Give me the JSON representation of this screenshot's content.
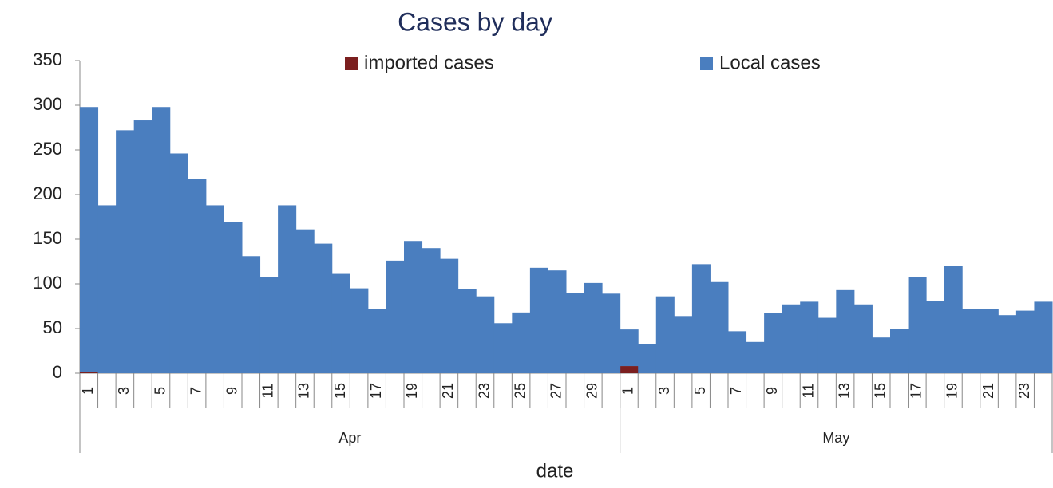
{
  "chart_data": {
    "type": "bar",
    "stacked": true,
    "title": "Cases by day",
    "x_label": "date",
    "categories": [
      "1",
      null,
      "3",
      null,
      "5",
      null,
      "7",
      null,
      "9",
      null,
      "11",
      null,
      "13",
      null,
      "15",
      null,
      "17",
      null,
      "19",
      null,
      "21",
      null,
      "23",
      null,
      "25",
      null,
      "27",
      null,
      "29",
      null,
      "1",
      null,
      "3",
      null,
      "5",
      null,
      "7",
      null,
      "9",
      null,
      "11",
      null,
      "13",
      null,
      "15",
      null,
      "17",
      null,
      "19",
      null,
      "21",
      null,
      "23",
      null
    ],
    "group_labels": [
      "Apr",
      "May"
    ],
    "series": [
      {
        "name": "imported cases",
        "color": "#7b1f1f",
        "values": [
          1,
          0,
          0,
          0,
          0,
          0,
          0,
          0,
          0,
          0,
          0,
          0,
          0,
          0,
          0,
          0,
          0,
          0,
          0,
          0,
          0,
          0,
          0,
          0,
          0,
          0,
          0,
          0,
          0,
          0,
          8,
          0,
          0,
          0,
          0,
          0,
          0,
          0,
          0,
          0,
          0,
          0,
          0,
          0,
          0,
          0,
          0,
          0,
          0,
          0,
          0,
          0,
          0,
          0
        ]
      },
      {
        "name": "Local cases",
        "color": "#4a7ebf",
        "values": [
          297,
          188,
          272,
          283,
          298,
          246,
          217,
          188,
          169,
          131,
          108,
          188,
          161,
          145,
          112,
          95,
          72,
          126,
          148,
          140,
          128,
          94,
          86,
          56,
          68,
          118,
          115,
          90,
          101,
          89,
          41,
          33,
          86,
          64,
          122,
          102,
          47,
          35,
          67,
          77,
          80,
          62,
          93,
          77,
          40,
          50,
          108,
          81,
          120,
          72,
          72,
          65,
          70,
          80
        ]
      }
    ],
    "ylim": [
      0,
      350
    ],
    "yticks": [
      0,
      50,
      100,
      150,
      200,
      250,
      300,
      350
    ],
    "legend": "top"
  }
}
